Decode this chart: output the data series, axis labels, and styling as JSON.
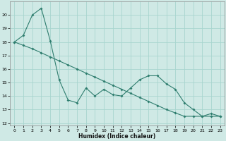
{
  "xlabel": "Humidex (Indice chaleur)",
  "ylabel": "",
  "bg_color": "#cfe9e5",
  "grid_color": "#a8d5cf",
  "line_color": "#2e7d6e",
  "xlim": [
    -0.5,
    23.5
  ],
  "ylim": [
    11.8,
    21.0
  ],
  "yticks": [
    12,
    13,
    14,
    15,
    16,
    17,
    18,
    19,
    20
  ],
  "xticks": [
    0,
    1,
    2,
    3,
    4,
    5,
    6,
    7,
    8,
    9,
    10,
    11,
    12,
    13,
    14,
    15,
    16,
    17,
    18,
    19,
    20,
    21,
    22,
    23
  ],
  "line1_x": [
    0,
    1,
    2,
    3,
    4,
    5,
    6,
    7,
    8,
    9,
    10,
    11,
    12,
    13,
    14,
    15,
    16,
    17,
    18,
    19,
    20,
    21,
    22,
    23
  ],
  "line1_y": [
    18.0,
    17.75,
    17.5,
    17.2,
    16.9,
    16.6,
    16.3,
    16.0,
    15.7,
    15.4,
    15.1,
    14.8,
    14.5,
    14.2,
    13.9,
    13.6,
    13.3,
    13.0,
    12.75,
    12.5,
    12.5,
    12.5,
    12.5,
    12.5
  ],
  "line2_x": [
    0,
    1,
    2,
    3,
    4,
    5,
    6,
    7,
    8,
    9,
    10,
    11,
    12,
    13,
    14,
    15,
    16,
    17,
    18,
    19,
    20,
    21,
    22,
    23
  ],
  "line2_y": [
    18.0,
    18.5,
    20.0,
    20.5,
    18.1,
    15.2,
    13.7,
    13.5,
    14.6,
    14.0,
    14.5,
    14.1,
    14.0,
    14.6,
    15.2,
    15.5,
    15.5,
    14.9,
    14.5,
    13.5,
    13.0,
    12.5,
    12.7,
    12.5
  ],
  "xlabel_fontsize": 5.5,
  "tick_fontsize": 4.5
}
